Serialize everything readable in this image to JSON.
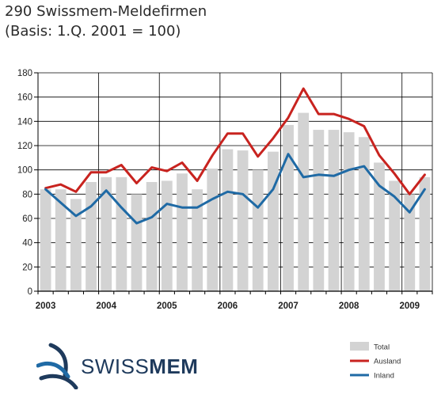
{
  "header": {
    "title": "290 Swissmem-Meldefirmen",
    "subtitle": "(Basis: 1.Q. 2001 = 100)"
  },
  "logo": {
    "text_light": "SWISS",
    "text_bold": "MEM",
    "color": "#1e3a5c",
    "icon": "swissmem-swoosh-icon"
  },
  "colors": {
    "total": "#d3d3d3",
    "ausland": "#c8231f",
    "inland": "#1f6aa5",
    "grid": "#000000"
  },
  "chart_data": {
    "type": "bar",
    "title": "",
    "xlabel": "",
    "ylabel": "",
    "ylim": [
      0,
      180
    ],
    "yticks": [
      0,
      20,
      40,
      60,
      80,
      100,
      120,
      140,
      160,
      180
    ],
    "x_year_labels": [
      "2003",
      "2004",
      "2005",
      "2006",
      "2007",
      "2008",
      "2009"
    ],
    "periods": 26,
    "grid": true,
    "legend": {
      "position": "bottom-right",
      "entries": [
        "Total",
        "Ausland",
        "Inland"
      ]
    },
    "series": [
      {
        "name": "Total",
        "kind": "bar",
        "values": [
          84,
          84,
          76,
          90,
          94,
          94,
          80,
          90,
          91,
          97,
          84,
          101,
          117,
          116,
          100,
          115,
          137,
          147,
          133,
          133,
          131,
          127,
          106,
          91,
          80,
          94
        ]
      },
      {
        "name": "Ausland",
        "kind": "line",
        "values": [
          85,
          88,
          82,
          98,
          98,
          104,
          89,
          102,
          99,
          106,
          91,
          112,
          130,
          130,
          111,
          126,
          143,
          167,
          146,
          146,
          142,
          136,
          112,
          97,
          80,
          96
        ]
      },
      {
        "name": "Inland",
        "kind": "line",
        "values": [
          84,
          73,
          62,
          70,
          83,
          69,
          56,
          61,
          72,
          69,
          69,
          76,
          82,
          80,
          69,
          84,
          113,
          94,
          96,
          95,
          100,
          103,
          87,
          78,
          65,
          84
        ]
      }
    ]
  }
}
